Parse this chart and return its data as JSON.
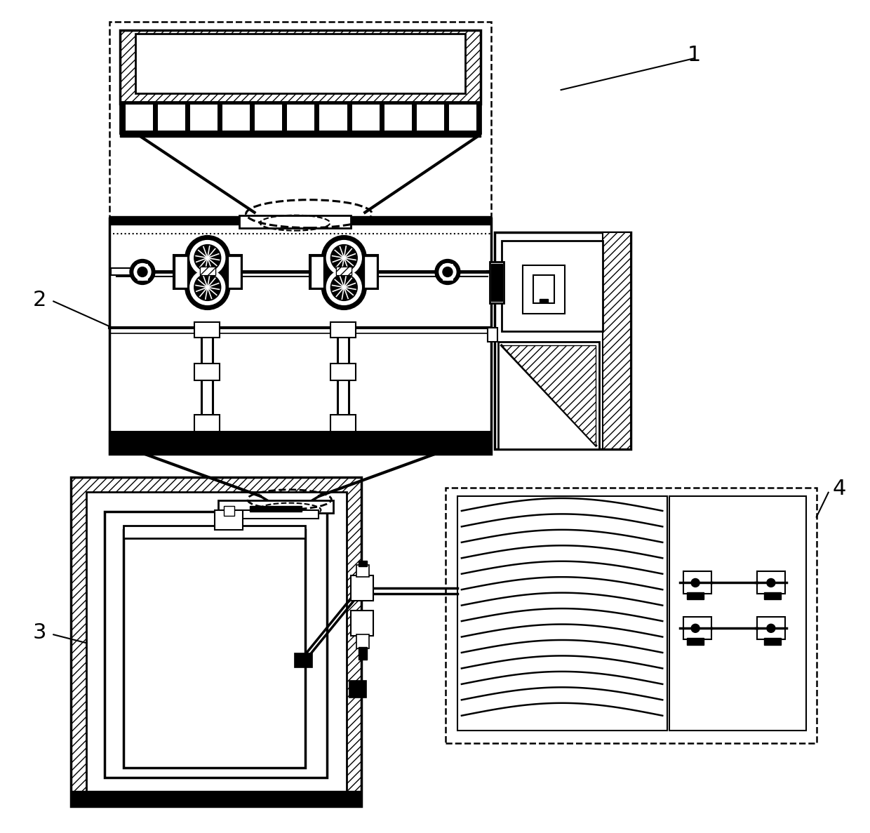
{
  "bg_color": "#ffffff",
  "lc": "#000000",
  "labels": [
    "1",
    "2",
    "3",
    "4"
  ],
  "figsize": [
    12.4,
    11.87
  ],
  "dpi": 100
}
